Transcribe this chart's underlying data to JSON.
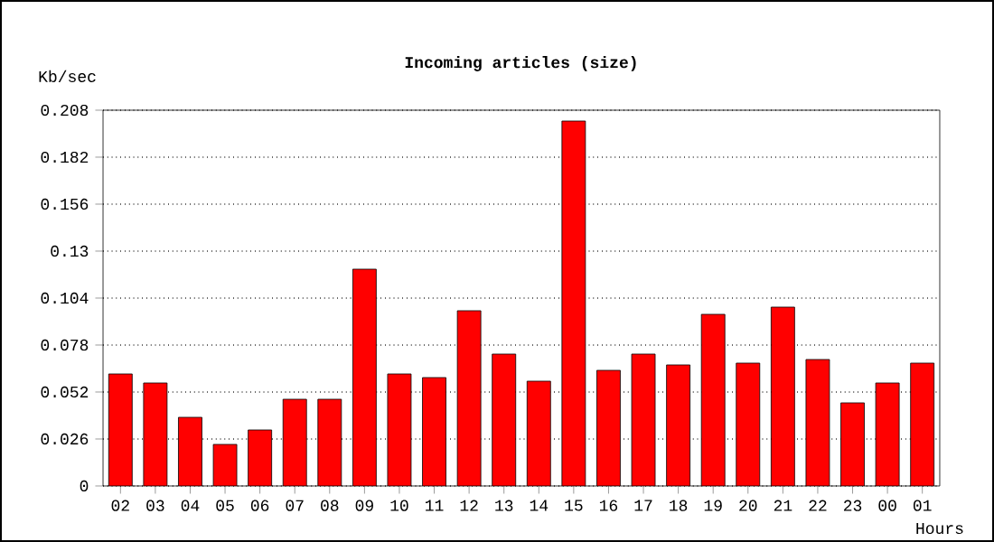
{
  "chart_data": {
    "type": "bar",
    "title": "Incoming articles (size)",
    "xlabel": "Hours",
    "ylabel": "Kb/sec",
    "categories": [
      "02",
      "03",
      "04",
      "05",
      "06",
      "07",
      "08",
      "09",
      "10",
      "11",
      "12",
      "13",
      "14",
      "15",
      "16",
      "17",
      "18",
      "19",
      "20",
      "21",
      "22",
      "23",
      "00",
      "01"
    ],
    "values": [
      0.062,
      0.057,
      0.038,
      0.023,
      0.031,
      0.048,
      0.048,
      0.12,
      0.062,
      0.06,
      0.097,
      0.073,
      0.058,
      0.202,
      0.064,
      0.073,
      0.067,
      0.095,
      0.068,
      0.099,
      0.07,
      0.046,
      0.057,
      0.068
    ],
    "color": "#ff0000",
    "ylim": [
      0,
      0.208
    ],
    "yticks": [
      0,
      0.026,
      0.052,
      0.078,
      0.104,
      0.13,
      0.156,
      0.182,
      0.208
    ],
    "grid": "y"
  }
}
